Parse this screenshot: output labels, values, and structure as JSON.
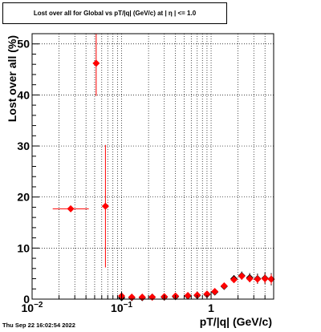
{
  "title": "Lost over all for Global vs pT/|q| (GeV/c) at |  η  | <= 1.0",
  "footer": "Thu Sep 22 16:02:54 2022",
  "colors": {
    "marker": "#ff0000",
    "background_series": "#000000",
    "grid": "#000000"
  },
  "chart_data": {
    "type": "scatter",
    "title": "Lost over all for Global vs pT/|q| (GeV/c) at |  η  | <= 1.0",
    "xlabel": "pT/|q| (GeV/c)",
    "ylabel": "Lost over all (%)",
    "xscale": "log",
    "xlim": [
      0.01,
      5.0
    ],
    "ylim": [
      0,
      52
    ],
    "grid": true,
    "xticks": [
      {
        "value": 0.01,
        "base": "10",
        "exp": "−2"
      },
      {
        "value": 0.1,
        "base": "10",
        "exp": "−1"
      },
      {
        "value": 1,
        "base": "1",
        "exp": ""
      }
    ],
    "yticks": [
      "0",
      "10",
      "20",
      "30",
      "40",
      "50"
    ],
    "series": [
      {
        "color": "#000000",
        "points": [
          {
            "x": 0.1,
            "y": 0.3,
            "yerr": 0.5
          },
          {
            "x": 0.13,
            "y": 0.3,
            "yerr": 0.4
          },
          {
            "x": 0.17,
            "y": 0.3,
            "yerr": 0.3
          },
          {
            "x": 0.22,
            "y": 0.4,
            "yerr": 0.3
          },
          {
            "x": 0.3,
            "y": 0.4,
            "yerr": 0.3
          },
          {
            "x": 0.4,
            "y": 0.5,
            "yerr": 0.3
          },
          {
            "x": 0.55,
            "y": 0.6,
            "yerr": 0.3
          },
          {
            "x": 0.7,
            "y": 0.7,
            "yerr": 0.3
          },
          {
            "x": 0.9,
            "y": 0.9,
            "yerr": 0.3
          },
          {
            "x": 1.1,
            "y": 1.4,
            "yerr": 0.4
          },
          {
            "x": 1.4,
            "y": 2.5,
            "yerr": 0.5
          },
          {
            "x": 1.8,
            "y": 4.0,
            "yerr": 0.7
          },
          {
            "x": 2.2,
            "y": 4.6,
            "yerr": 0.8
          },
          {
            "x": 2.7,
            "y": 4.2,
            "yerr": 0.9
          },
          {
            "x": 3.3,
            "y": 4.0,
            "yerr": 1.0
          },
          {
            "x": 4.0,
            "y": 4.1,
            "yerr": 1.1
          },
          {
            "x": 4.7,
            "y": 3.9,
            "yerr": 1.2
          }
        ]
      },
      {
        "color": "#ff0000",
        "points": [
          {
            "x": 0.027,
            "y": 17.7,
            "xerr": [
              0.017,
              0.043
            ]
          },
          {
            "x": 0.052,
            "y": 46.2,
            "yerr": [
              39.8,
              52
            ]
          },
          {
            "x": 0.066,
            "y": 18.2,
            "yerr": [
              6.2,
              30.2
            ]
          },
          {
            "x": 0.1,
            "y": 0.6,
            "yerr": 0.3
          },
          {
            "x": 0.13,
            "y": 0.4,
            "yerr": 0.2
          },
          {
            "x": 0.17,
            "y": 0.4,
            "yerr": 0.2
          },
          {
            "x": 0.22,
            "y": 0.4,
            "yerr": 0.2
          },
          {
            "x": 0.3,
            "y": 0.5,
            "yerr": 0.2
          },
          {
            "x": 0.4,
            "y": 0.6,
            "yerr": 0.2
          },
          {
            "x": 0.55,
            "y": 0.7,
            "yerr": 0.2
          },
          {
            "x": 0.7,
            "y": 0.8,
            "yerr": 0.2
          },
          {
            "x": 0.9,
            "y": 1.0,
            "yerr": 0.2
          },
          {
            "x": 1.1,
            "y": 1.5,
            "yerr": 0.3
          },
          {
            "x": 1.4,
            "y": 2.6,
            "yerr": 0.4
          },
          {
            "x": 1.8,
            "y": 3.8,
            "yerr": 0.5
          },
          {
            "x": 2.2,
            "y": 4.5,
            "yerr": 0.6
          },
          {
            "x": 2.7,
            "y": 4.0,
            "yerr": 0.7
          },
          {
            "x": 3.3,
            "y": 3.9,
            "yerr": 0.8
          },
          {
            "x": 4.0,
            "y": 4.0,
            "yerr": 0.9
          },
          {
            "x": 4.7,
            "y": 3.9,
            "yerr": 1.0
          }
        ]
      }
    ]
  }
}
